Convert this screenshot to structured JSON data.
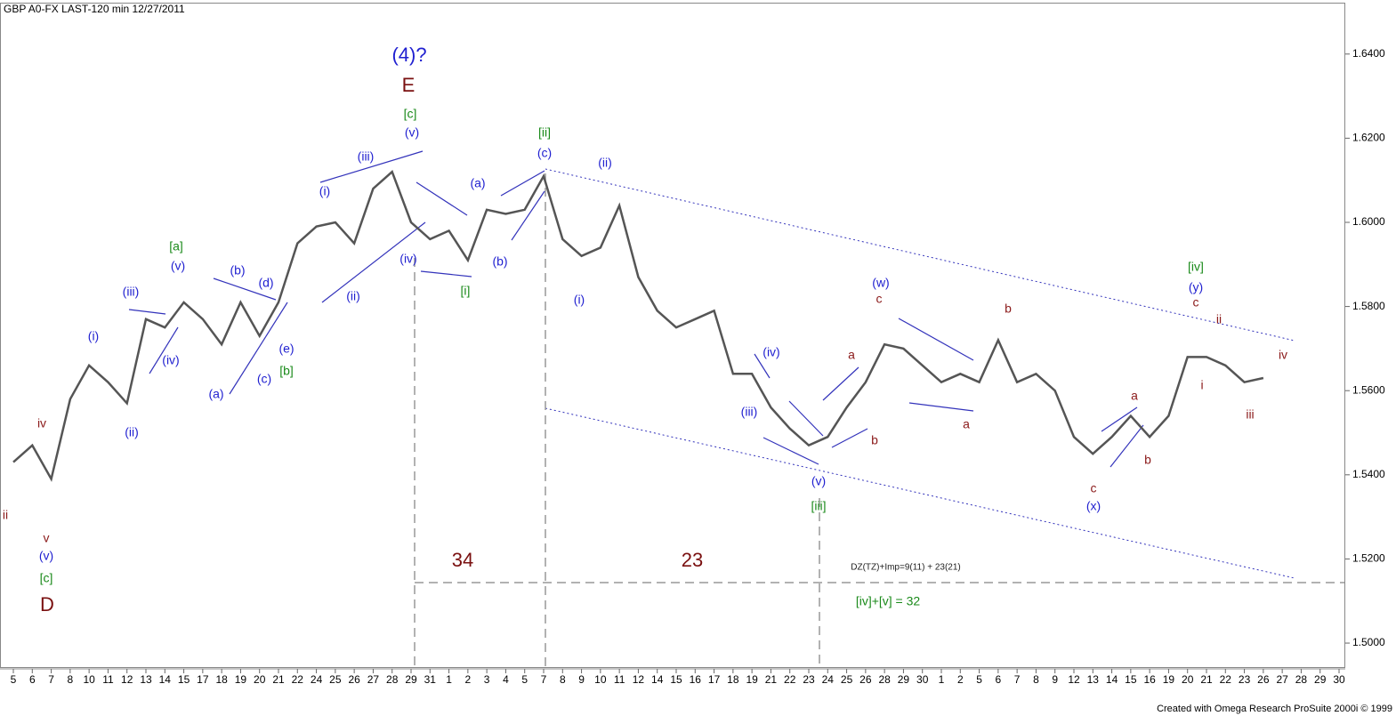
{
  "chart_data": {
    "type": "line",
    "header": "GBP A0-FX LAST-120 min   12/27/2011",
    "footer": "Created with Omega Research ProSuite 2000i © 1999",
    "categories": [
      "5",
      "6",
      "7",
      "8",
      "10",
      "11",
      "12",
      "13",
      "14",
      "15",
      "17",
      "18",
      "19",
      "20",
      "21",
      "22",
      "24",
      "25",
      "26",
      "27",
      "28",
      "29",
      "31",
      "1",
      "2",
      "3",
      "4",
      "5",
      "7",
      "8",
      "9",
      "10",
      "11",
      "12",
      "14",
      "15",
      "16",
      "17",
      "18",
      "19",
      "21",
      "22",
      "23",
      "24",
      "25",
      "26",
      "28",
      "29",
      "30",
      "1",
      "2",
      "5",
      "6",
      "7",
      "8",
      "9",
      "12",
      "13",
      "14",
      "15",
      "16",
      "19",
      "20",
      "21",
      "22",
      "23",
      "26",
      "27",
      "28",
      "29",
      "30"
    ],
    "series": [
      {
        "name": "GBP A0-FX",
        "color": "#555555",
        "values": [
          1.543,
          1.547,
          1.539,
          1.558,
          1.566,
          1.562,
          1.557,
          1.577,
          1.575,
          1.581,
          1.577,
          1.571,
          1.581,
          1.573,
          1.581,
          1.595,
          1.599,
          1.6,
          1.595,
          1.608,
          1.612,
          1.6,
          1.596,
          1.598,
          1.591,
          1.603,
          1.602,
          1.603,
          1.611,
          1.596,
          1.592,
          1.594,
          1.604,
          1.587,
          1.579,
          1.575,
          1.577,
          1.579,
          1.564,
          1.564,
          1.556,
          1.551,
          1.547,
          1.549,
          1.556,
          1.562,
          1.571,
          1.57,
          1.566,
          1.562,
          1.564,
          1.562,
          1.572,
          1.562,
          1.564,
          1.56,
          1.549,
          1.545,
          1.549,
          1.554,
          1.549,
          1.554,
          1.568,
          1.568,
          1.566,
          1.562,
          1.563,
          null,
          null,
          null,
          null
        ]
      }
    ],
    "ylim": [
      1.4943,
      1.652
    ],
    "yticks": [
      {
        "value": 1.5,
        "label": "1.5000"
      },
      {
        "value": 1.52,
        "label": "1.5200"
      },
      {
        "value": 1.54,
        "label": "1.5400"
      },
      {
        "value": 1.56,
        "label": "1.5600"
      },
      {
        "value": 1.58,
        "label": "1.5800"
      },
      {
        "value": 1.6,
        "label": "1.6000"
      },
      {
        "value": 1.62,
        "label": "1.6200"
      },
      {
        "value": 1.64,
        "label": "1.6400"
      }
    ],
    "annotations": [
      {
        "text": "(4)?",
        "color": "#1f1fd0"
      },
      {
        "text": "E",
        "color": "#7a1010"
      },
      {
        "text": "[c]",
        "color": "#1a8a1a"
      },
      {
        "text": "(v)",
        "color": "#1f1fd0"
      },
      {
        "text": "(iii)",
        "color": "#1f1fd0"
      },
      {
        "text": "(i)",
        "color": "#1f1fd0"
      },
      {
        "text": "(ii)",
        "color": "#1f1fd0"
      },
      {
        "text": "(iv)",
        "color": "#1f1fd0"
      },
      {
        "text": "[i]",
        "color": "#1a8a1a"
      },
      {
        "text": "(a)",
        "color": "#1f1fd0"
      },
      {
        "text": "(b)",
        "color": "#1f1fd0"
      },
      {
        "text": "[ii]",
        "color": "#1a8a1a"
      },
      {
        "text": "(c)",
        "color": "#1f1fd0"
      },
      {
        "text": "(ii)",
        "color": "#1f1fd0"
      },
      {
        "text": "(i)",
        "color": "#1f1fd0"
      },
      {
        "text": "(iv)",
        "color": "#1f1fd0"
      },
      {
        "text": "(iii)",
        "color": "#1f1fd0"
      },
      {
        "text": "(v)",
        "color": "#1f1fd0"
      },
      {
        "text": "[iii]",
        "color": "#1a8a1a"
      },
      {
        "text": "(w)",
        "color": "#1f1fd0"
      },
      {
        "text": "c",
        "color": "#8b1a1a"
      },
      {
        "text": "a",
        "color": "#8b1a1a"
      },
      {
        "text": "b",
        "color": "#8b1a1a"
      },
      {
        "text": "b",
        "color": "#8b1a1a"
      },
      {
        "text": "a",
        "color": "#8b1a1a"
      },
      {
        "text": "c",
        "color": "#8b1a1a"
      },
      {
        "text": "(x)",
        "color": "#1f1fd0"
      },
      {
        "text": "a",
        "color": "#8b1a1a"
      },
      {
        "text": "b",
        "color": "#8b1a1a"
      },
      {
        "text": "[iv]",
        "color": "#1a8a1a"
      },
      {
        "text": "(y)",
        "color": "#1f1fd0"
      },
      {
        "text": "c",
        "color": "#8b1a1a"
      },
      {
        "text": "ii",
        "color": "#8b1a1a"
      },
      {
        "text": "i",
        "color": "#8b1a1a"
      },
      {
        "text": "iii",
        "color": "#8b1a1a"
      },
      {
        "text": "iv",
        "color": "#8b1a1a"
      },
      {
        "text": "[a]",
        "color": "#1a8a1a"
      },
      {
        "text": "(v)",
        "color": "#1f1fd0"
      },
      {
        "text": "(iii)",
        "color": "#1f1fd0"
      },
      {
        "text": "(i)",
        "color": "#1f1fd0"
      },
      {
        "text": "(ii)",
        "color": "#1f1fd0"
      },
      {
        "text": "(iv)",
        "color": "#1f1fd0"
      },
      {
        "text": "(b)",
        "color": "#1f1fd0"
      },
      {
        "text": "(d)",
        "color": "#1f1fd0"
      },
      {
        "text": "(e)",
        "color": "#1f1fd0"
      },
      {
        "text": "[b]",
        "color": "#1a8a1a"
      },
      {
        "text": "(c)",
        "color": "#1f1fd0"
      },
      {
        "text": "(a)",
        "color": "#1f1fd0"
      },
      {
        "text": "iv",
        "color": "#8b1a1a"
      },
      {
        "text": "ii",
        "color": "#8b1a1a"
      },
      {
        "text": "v",
        "color": "#8b1a1a"
      },
      {
        "text": "(v)",
        "color": "#1f1fd0"
      },
      {
        "text": "[c]",
        "color": "#1a8a1a"
      },
      {
        "text": "D",
        "color": "#7a1010"
      },
      {
        "text": "34",
        "color": "#7a1010"
      },
      {
        "text": "23",
        "color": "#7a1010"
      },
      {
        "text": "DZ(TZ)+Imp=9(11) + 23(21)",
        "color": "#222222"
      },
      {
        "text": "[iv]+[v] = 32",
        "color": "#1a8a1a"
      }
    ]
  }
}
